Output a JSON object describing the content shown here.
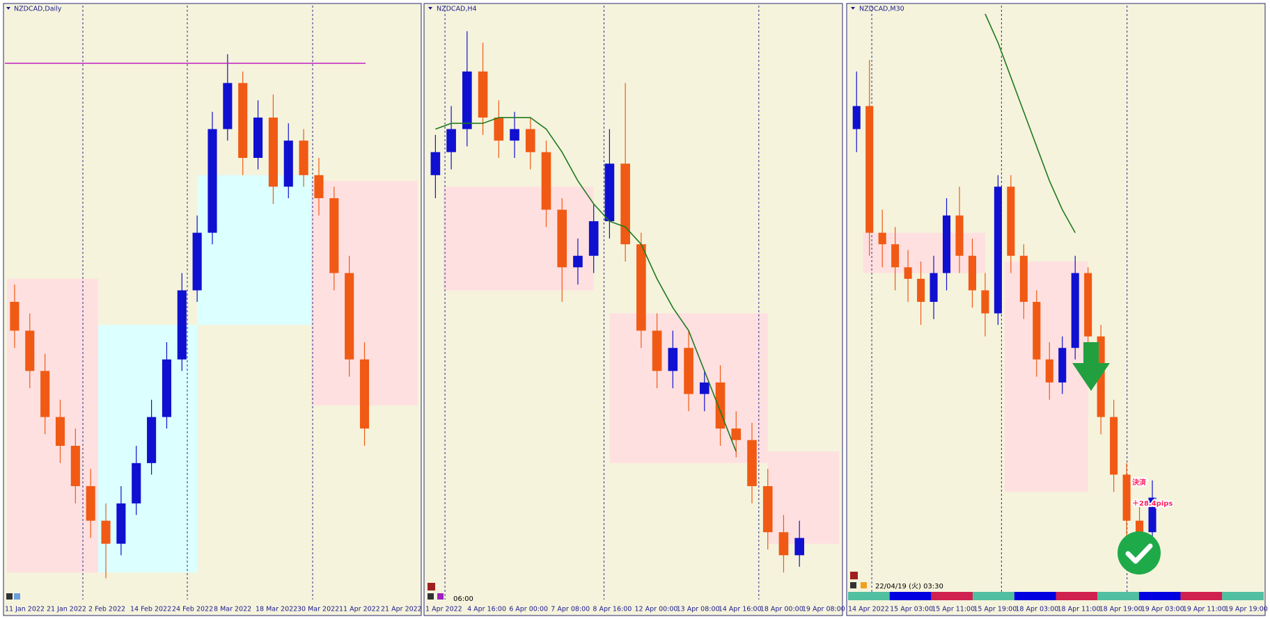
{
  "chart_data": [
    {
      "type": "candlestick",
      "title": "NZDCAD,Daily",
      "x_labels": [
        "11 Jan 2022",
        "21 Jan 2022",
        "2 Feb 2022",
        "14 Feb 2022",
        "24 Feb 2022",
        "8 Mar 2022",
        "18 Mar 2022",
        "30 Mar 2022",
        "11 Apr 2022",
        "21 Apr 2022"
      ],
      "open": [
        50,
        45,
        38,
        30,
        25,
        18,
        12,
        8,
        15,
        22,
        30,
        40,
        52,
        62,
        80,
        88,
        75,
        82,
        70,
        78,
        72,
        68,
        55,
        40
      ],
      "close": [
        45,
        38,
        30,
        25,
        18,
        12,
        8,
        15,
        22,
        30,
        40,
        52,
        62,
        80,
        88,
        75,
        82,
        70,
        78,
        72,
        68,
        55,
        40,
        28
      ],
      "high": [
        53,
        48,
        41,
        33,
        28,
        21,
        15,
        18,
        25,
        33,
        43,
        55,
        65,
        83,
        93,
        90,
        85,
        86,
        81,
        80,
        75,
        70,
        58,
        43
      ],
      "low": [
        42,
        35,
        27,
        22,
        15,
        9,
        2,
        6,
        13,
        20,
        28,
        38,
        50,
        60,
        78,
        72,
        73,
        67,
        68,
        70,
        65,
        52,
        37,
        25
      ],
      "ylim": [
        0,
        100
      ]
    },
    {
      "type": "candlestick",
      "title": "NZDCAD,H4",
      "x_labels": [
        "1 Apr 2022",
        "4 Apr 16:00",
        "6 Apr 00:00",
        "7 Apr 08:00",
        "8 Apr 16:00",
        "12 Apr 00:00",
        "13 Apr 08:00",
        "14 Apr 16:00",
        "18 Apr 00:00",
        "19 Apr 08:00"
      ],
      "open": [
        72,
        76,
        80,
        90,
        82,
        78,
        80,
        76,
        66,
        56,
        58,
        64,
        74,
        60,
        45,
        38,
        42,
        34,
        36,
        28,
        26,
        18,
        10,
        6
      ],
      "close": [
        76,
        80,
        90,
        82,
        78,
        80,
        76,
        66,
        56,
        58,
        64,
        74,
        60,
        45,
        38,
        42,
        34,
        36,
        28,
        26,
        18,
        10,
        6,
        9
      ],
      "high": [
        79,
        84,
        97,
        95,
        85,
        83,
        82,
        78,
        68,
        61,
        67,
        80,
        88,
        62,
        48,
        45,
        45,
        38,
        39,
        31,
        29,
        21,
        13,
        12
      ],
      "low": [
        68,
        73,
        77,
        79,
        75,
        75,
        73,
        63,
        50,
        53,
        55,
        61,
        57,
        42,
        35,
        35,
        31,
        31,
        25,
        23,
        15,
        7,
        3,
        4
      ],
      "ma": [
        80,
        81,
        81,
        81,
        82,
        82,
        82,
        80,
        76,
        71,
        67,
        64,
        63,
        60,
        54,
        49,
        45,
        38,
        31,
        24,
        null,
        null,
        null,
        null
      ],
      "ma_color": "#1e7a1e",
      "annotation": "06:00",
      "ylim": [
        0,
        100
      ]
    },
    {
      "type": "candlestick",
      "title": "NZDCAD,M30",
      "x_labels": [
        "14 Apr 2022",
        "15 Apr 03:00",
        "15 Apr 11:00",
        "15 Apr 19:00",
        "18 Apr 03:00",
        "18 Apr 11:00",
        "18 Apr 19:00",
        "19 Apr 03:00",
        "19 Apr 11:00",
        "19 Apr 19:00"
      ],
      "open": [
        80,
        84,
        62,
        60,
        56,
        54,
        50,
        55,
        65,
        58,
        52,
        48,
        70,
        58,
        50,
        40,
        36,
        42,
        55,
        44,
        30,
        20,
        12,
        10
      ],
      "close": [
        84,
        62,
        60,
        56,
        54,
        50,
        55,
        65,
        58,
        52,
        48,
        70,
        58,
        50,
        40,
        36,
        42,
        55,
        44,
        30,
        20,
        12,
        10,
        16
      ],
      "high": [
        90,
        92,
        66,
        63,
        59,
        57,
        58,
        68,
        70,
        61,
        55,
        72,
        72,
        60,
        52,
        43,
        44,
        58,
        56,
        46,
        33,
        22,
        15,
        19
      ],
      "low": [
        76,
        58,
        56,
        52,
        50,
        46,
        47,
        52,
        55,
        49,
        44,
        46,
        55,
        47,
        37,
        33,
        34,
        40,
        42,
        27,
        17,
        9,
        7,
        8
      ],
      "ma": [
        null,
        null,
        null,
        null,
        null,
        null,
        null,
        null,
        null,
        null,
        100,
        95,
        89,
        83,
        77,
        71,
        66,
        62,
        null,
        null,
        null,
        null,
        null,
        null
      ],
      "ma_color": "#1e7a1e",
      "annotation": "22/04/19 (火) 03:30",
      "result_labels": [
        "決済",
        "＋28.4pips"
      ],
      "ylim": [
        0,
        100
      ]
    }
  ]
}
